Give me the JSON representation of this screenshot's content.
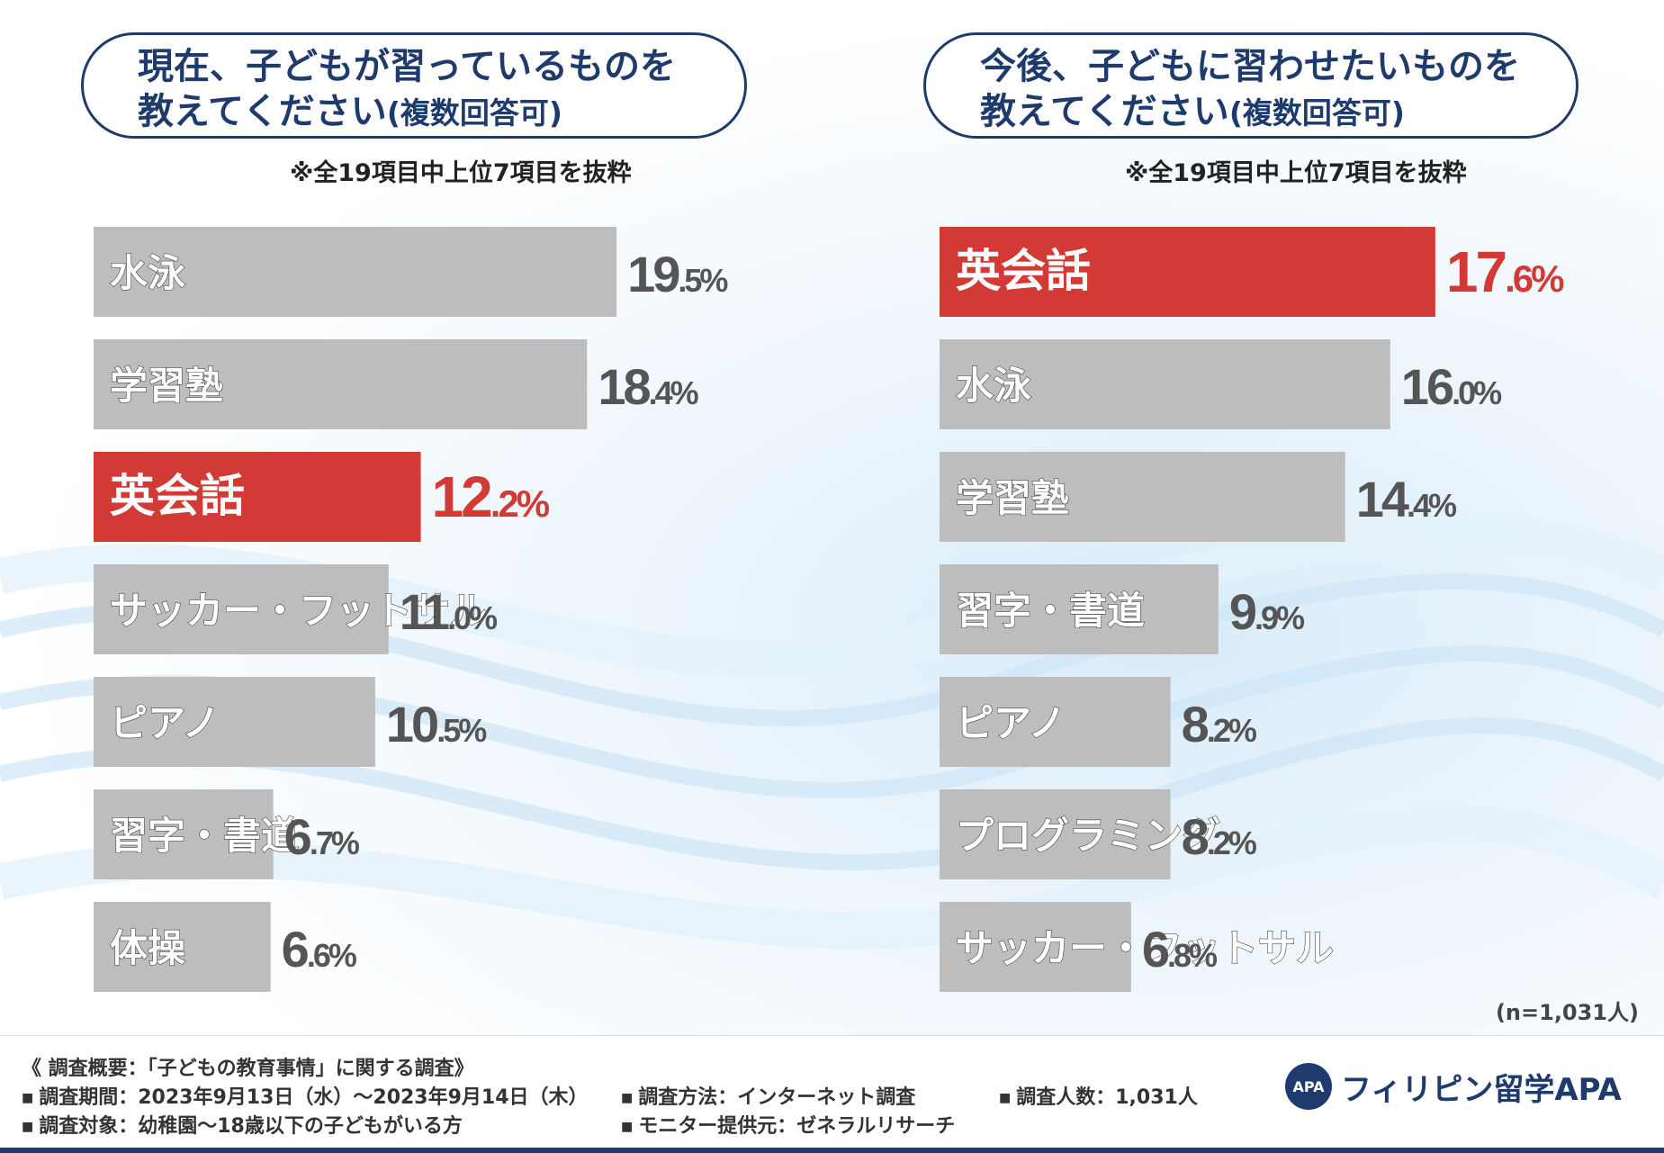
{
  "chart_data": [
    {
      "type": "bar",
      "orientation": "horizontal",
      "title_line1": "現在、子どもが習っているものを",
      "title_line2": "教えてください",
      "title_suffix": "(複数回答可)",
      "note": "※全19項目中上位7項目を抜粋",
      "categories": [
        "水泳",
        "学習塾",
        "英会話",
        "サッカー・フットサル",
        "ピアノ",
        "習字・書道",
        "体操"
      ],
      "values": [
        19.5,
        18.4,
        12.2,
        11.0,
        10.5,
        6.7,
        6.6
      ],
      "labels": [
        {
          "int": "19",
          "dec": ".5%"
        },
        {
          "int": "18",
          "dec": ".4%"
        },
        {
          "int": "12",
          "dec": ".2%"
        },
        {
          "int": "11",
          "dec": ".0%"
        },
        {
          "int": "10",
          "dec": ".5%"
        },
        {
          "int": "6",
          "dec": ".7%"
        },
        {
          "int": "6",
          "dec": ".6%"
        }
      ],
      "highlight": "英会話",
      "unit": "%"
    },
    {
      "type": "bar",
      "orientation": "horizontal",
      "title_line1": "今後、子どもに習わせたいものを",
      "title_line2": "教えてください",
      "title_suffix": "(複数回答可)",
      "note": "※全19項目中上位7項目を抜粋",
      "categories": [
        "英会話",
        "水泳",
        "学習塾",
        "習字・書道",
        "ピアノ",
        "プログラミング",
        "サッカー・フットサル"
      ],
      "values": [
        17.6,
        16.0,
        14.4,
        9.9,
        8.2,
        8.2,
        6.8
      ],
      "labels": [
        {
          "int": "17",
          "dec": ".6%"
        },
        {
          "int": "16",
          "dec": ".0%"
        },
        {
          "int": "14",
          "dec": ".4%"
        },
        {
          "int": "9",
          "dec": ".9%"
        },
        {
          "int": "8",
          "dec": ".2%"
        },
        {
          "int": "8",
          "dec": ".2%"
        },
        {
          "int": "6",
          "dec": ".8%"
        }
      ],
      "highlight": "英会話",
      "unit": "%"
    }
  ],
  "sample_size": "(n=1,031人)",
  "footer": {
    "summary": "《 調査概要：「子どもの教育事情」に関する調査》",
    "period": "調査期間：2023年9月13日（水）～2023年9月14日（木）",
    "target": "調査対象：幼稚園～18歳以下の子どもがいる方",
    "method": "調査方法：インターネット調査",
    "provider": "モニター提供元：ゼネラルリサーチ",
    "count": "調査人数：1,031人",
    "bullet": "■"
  },
  "logo": {
    "mark": "APA",
    "name": "フィリピン留学APA"
  },
  "colors": {
    "bar": "#bdbdbd",
    "highlight": "#d23a35",
    "navy": "#1f3b6e",
    "value_text": "#555555"
  }
}
